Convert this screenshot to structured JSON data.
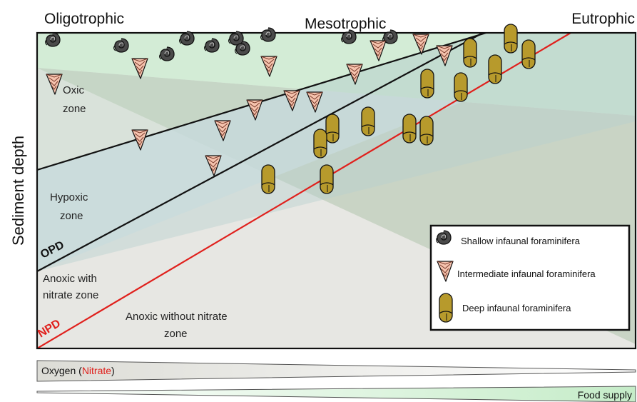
{
  "headers": {
    "left": "Oligotrophic",
    "center": "Mesotrophic",
    "right": "Eutrophic"
  },
  "axis": {
    "y_label": "Sediment depth"
  },
  "zones": {
    "oxic_line1": "Oxic",
    "oxic_line2": "zone",
    "hypoxic_line1": "Hypoxic",
    "hypoxic_line2": "zone",
    "anoxic_nitrate_line1": "Anoxic with",
    "anoxic_nitrate_line2": "nitrate zone",
    "anoxic_no_nitrate_line1": "Anoxic without nitrate",
    "anoxic_no_nitrate_line2": "zone"
  },
  "boundaries": {
    "opd": "OPD",
    "npd": "NPD"
  },
  "legend": {
    "shallow": "Shallow infaunal foraminifera",
    "intermediate": "Intermediate infaunal foraminifera",
    "deep": "Deep infaunal foraminifera"
  },
  "gradients": {
    "oxygen_prefix": "Oxygen (",
    "nitrate": "Nitrate",
    "oxygen_suffix": ")",
    "food": "Food supply"
  },
  "colors": {
    "oxic_band": "#d3ecd6",
    "opd_line": "#111111",
    "npd_line": "#e0201c",
    "nitrate_text": "#e0201c",
    "shallow_shell": "#4a4a4a",
    "intermediate_shell": "#f5c3ae",
    "deep_shell": "#b79a2c",
    "food_gradient": "#c5ecc8"
  }
}
